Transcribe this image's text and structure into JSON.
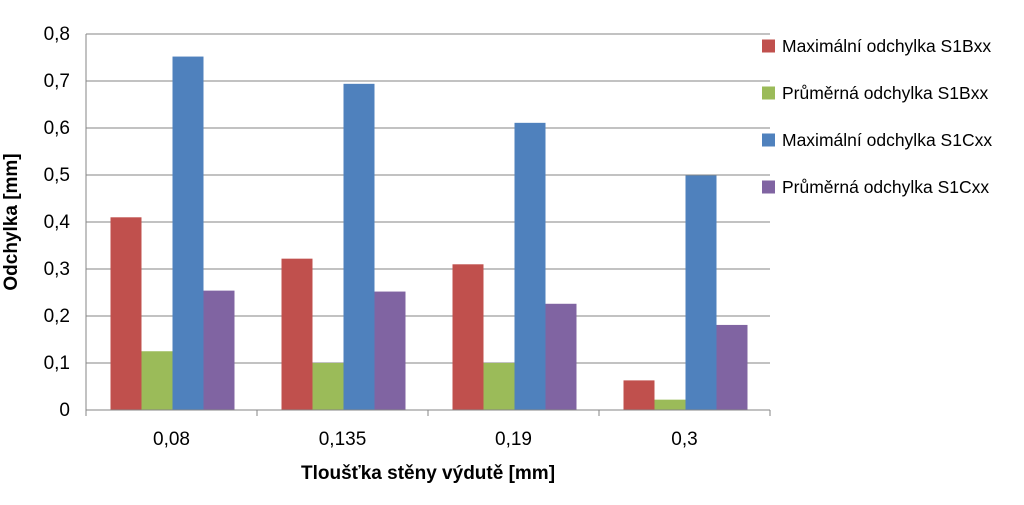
{
  "chart_data": {
    "type": "bar",
    "title": "",
    "xlabel": "Tloušťka stěny výdutě [mm]",
    "ylabel": "Odchylka [mm]",
    "categories": [
      "0,08",
      "0,135",
      "0,19",
      "0,3"
    ],
    "ylim": [
      0,
      0.8
    ],
    "y_ticks": [
      0,
      0.1,
      0.2,
      0.3,
      0.4,
      0.5,
      0.6,
      0.7,
      0.8
    ],
    "y_tick_labels": [
      "0",
      "0,1",
      "0,2",
      "0,3",
      "0,4",
      "0,5",
      "0,6",
      "0,7",
      "0,8"
    ],
    "grid": true,
    "legend_position": "right",
    "series": [
      {
        "name": "Maximální odchylka S1Bxx",
        "color": "#C0504D",
        "values": [
          0.41,
          0.322,
          0.31,
          0.063
        ]
      },
      {
        "name": "Průměrná odchylka S1Bxx",
        "color": "#9BBB59",
        "values": [
          0.125,
          0.1,
          0.1,
          0.022
        ]
      },
      {
        "name": "Maximální odchylka S1Cxx",
        "color": "#4F81BD",
        "values": [
          0.752,
          0.694,
          0.611,
          0.499
        ]
      },
      {
        "name": "Průměrná odchylka S1Cxx",
        "color": "#8064A2",
        "values": [
          0.254,
          0.252,
          0.226,
          0.181
        ]
      }
    ]
  }
}
